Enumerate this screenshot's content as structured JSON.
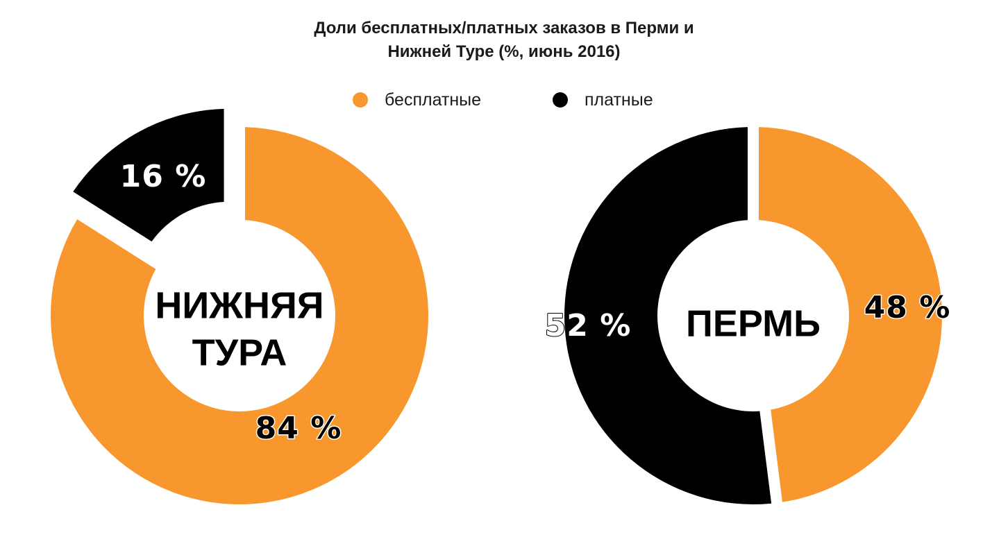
{
  "title": {
    "line1": "Доли бесплатных/платных заказов в Перми и",
    "line2": "Нижней Туре (%, июнь 2016)"
  },
  "legend": {
    "free_label": "бесплатные",
    "paid_label": "платные"
  },
  "colors": {
    "free": "#F7972E",
    "paid": "#000000",
    "background": "#FFFFFF"
  },
  "chart_data": [
    {
      "type": "pie",
      "variant": "donut",
      "center_label_lines": [
        "НИЖНЯЯ",
        "ТУРА"
      ],
      "slices": [
        {
          "label": "бесплатные",
          "value": 84,
          "display": "84 %"
        },
        {
          "label": "платные",
          "value": 16,
          "display": "16 %",
          "exploded": true
        }
      ]
    },
    {
      "type": "pie",
      "variant": "donut",
      "center_label_lines": [
        "ПЕРМЬ"
      ],
      "slices": [
        {
          "label": "бесплатные",
          "value": 48,
          "display": "48 %"
        },
        {
          "label": "платные",
          "value": 52,
          "display": "52 %"
        }
      ]
    }
  ]
}
